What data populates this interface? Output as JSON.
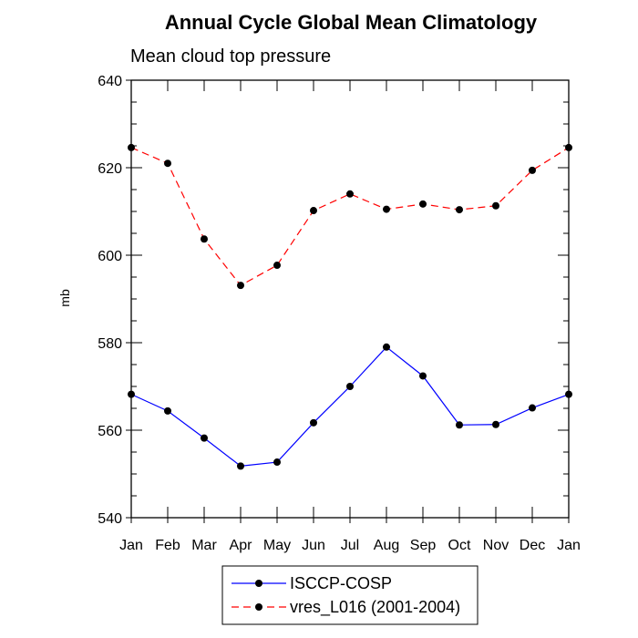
{
  "chart_data": {
    "type": "line",
    "title": "Annual Cycle Global Mean Climatology",
    "subtitle": "Mean cloud top pressure",
    "xlabel": "",
    "ylabel": "mb",
    "categories": [
      "Jan",
      "Feb",
      "Mar",
      "Apr",
      "May",
      "Jun",
      "Jul",
      "Aug",
      "Sep",
      "Oct",
      "Nov",
      "Dec",
      "Jan"
    ],
    "ylim": [
      540,
      640
    ],
    "yticks": [
      540,
      560,
      580,
      600,
      620,
      640
    ],
    "grid": false,
    "legend_position": "bottom",
    "series": [
      {
        "name": "ISCCP-COSP",
        "color": "#0000ff",
        "dash": "solid",
        "marker": "filled-circle",
        "values": [
          568.2,
          564.4,
          558.2,
          551.8,
          552.7,
          561.7,
          570.0,
          579.0,
          572.4,
          561.2,
          561.3,
          565.1,
          568.2
        ]
      },
      {
        "name": "vres_L016 (2001-2004)",
        "color": "#ff0000",
        "dash": "dashed",
        "marker": "filled-circle",
        "values": [
          624.6,
          621.0,
          603.7,
          593.1,
          597.7,
          610.2,
          614.0,
          610.5,
          611.7,
          610.4,
          611.3,
          619.4,
          624.6
        ]
      }
    ]
  }
}
